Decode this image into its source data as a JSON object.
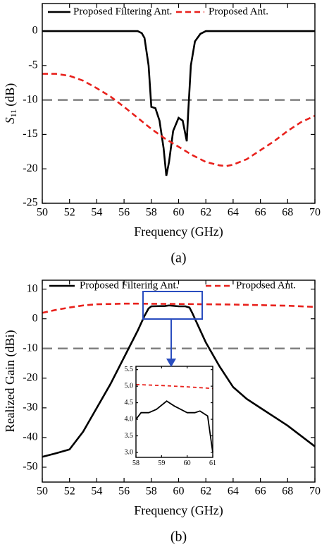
{
  "chart_data": [
    {
      "type": "line",
      "caption": "(a)",
      "xlabel": "Frequency (GHz)",
      "ylabel_symbol": "S",
      "ylabel_subscript": "11",
      "ylabel_unit": "(dB)",
      "xlim": [
        50,
        70
      ],
      "xticks": [
        50,
        52,
        54,
        56,
        58,
        60,
        62,
        64,
        66,
        68,
        70
      ],
      "ylim": [
        -25,
        4
      ],
      "yticks": [
        0,
        -5,
        -10,
        -15,
        -20,
        -25
      ],
      "reference_line": {
        "y": -10,
        "color": "#808080"
      },
      "legend": "upper center",
      "series": [
        {
          "name": "Proposed Filtering Ant.",
          "color": "#000000",
          "style": "solid",
          "x": [
            50,
            52,
            54,
            56,
            57,
            57.3,
            57.5,
            57.8,
            58,
            58.3,
            58.6,
            58.9,
            59.1,
            59.3,
            59.6,
            60,
            60.3,
            60.6,
            60.7,
            60.9,
            61.2,
            61.6,
            62,
            64,
            66,
            68,
            70
          ],
          "values": [
            0,
            0,
            0,
            0,
            0,
            -0.3,
            -1,
            -5,
            -11,
            -11.2,
            -13,
            -17,
            -21,
            -19,
            -14.5,
            -12.6,
            -13,
            -16,
            -12,
            -5,
            -1.5,
            -0.4,
            0,
            0,
            0,
            0,
            0
          ]
        },
        {
          "name": "Proposed Ant.",
          "color": "#e8211c",
          "style": "dashed",
          "x": [
            50,
            51,
            52,
            53,
            54,
            55,
            56,
            57,
            58,
            59,
            60,
            61,
            62,
            63,
            63.5,
            64,
            65,
            66,
            67,
            68,
            69,
            70
          ],
          "values": [
            -6.2,
            -6.2,
            -6.5,
            -7.2,
            -8.3,
            -9.5,
            -11,
            -12.6,
            -14.2,
            -15.6,
            -16.8,
            -18,
            -19,
            -19.5,
            -19.6,
            -19.4,
            -18.6,
            -17.3,
            -16,
            -14.5,
            -13.2,
            -12.3
          ]
        }
      ]
    },
    {
      "type": "line",
      "caption": "(b)",
      "xlabel": "Frequency (GHz)",
      "ylabel": "Realized Gain (dBi)",
      "xlim": [
        50,
        70
      ],
      "xticks": [
        50,
        52,
        54,
        56,
        58,
        60,
        62,
        64,
        66,
        68,
        70
      ],
      "ylim": [
        -55,
        13
      ],
      "yticks": [
        10,
        0,
        -10,
        -20,
        -30,
        -40,
        -50
      ],
      "reference_line": {
        "y": -10,
        "color": "#808080"
      },
      "legend": "upper center",
      "series": [
        {
          "name": "Proposed Filtering Ant.",
          "color": "#000000",
          "style": "solid",
          "x": [
            50,
            51,
            52,
            53,
            54,
            55,
            56,
            57,
            57.5,
            57.8,
            58,
            59,
            59.3,
            60,
            60.5,
            60.8,
            61,
            61.5,
            62,
            63,
            64,
            65,
            66,
            67,
            68,
            69,
            70
          ],
          "values": [
            -46.5,
            -45.3,
            -44,
            -38,
            -30,
            -22,
            -13,
            -4,
            1,
            3.5,
            4.2,
            4.3,
            4.5,
            4.2,
            4.2,
            3.8,
            2,
            -3,
            -8,
            -16,
            -23,
            -27,
            -30,
            -33,
            -36,
            -39.5,
            -43
          ]
        },
        {
          "name": "Proposed Ant.",
          "color": "#e8211c",
          "style": "dashed",
          "x": [
            50,
            51,
            52,
            53,
            54,
            55,
            56,
            57,
            58,
            60,
            62,
            64,
            66,
            68,
            70
          ],
          "values": [
            2,
            3,
            3.8,
            4.5,
            4.9,
            5,
            5.1,
            5.1,
            5.05,
            5,
            4.9,
            4.8,
            4.6,
            4.4,
            4
          ]
        }
      ]
    },
    {
      "type": "line",
      "xlim": [
        58,
        61
      ],
      "xticks": [
        58,
        59,
        60,
        61
      ],
      "ylim": [
        2.85,
        5.6
      ],
      "yticks": [
        {
          "value": 3,
          "label": "3.0"
        },
        {
          "value": 3.5,
          "label": "3.5"
        },
        {
          "value": 4,
          "label": "4.0"
        },
        {
          "value": 4.5,
          "label": "4.5"
        },
        {
          "value": 5,
          "label": "5.0"
        },
        {
          "value": 5.5,
          "label": "5.5"
        }
      ],
      "series": [
        {
          "color": "#000000",
          "style": "solid",
          "x": [
            58,
            58.2,
            58.5,
            58.8,
            59.2,
            59.5,
            60,
            60.3,
            60.5,
            60.8,
            61
          ],
          "values": [
            4,
            4.2,
            4.2,
            4.3,
            4.55,
            4.4,
            4.2,
            4.2,
            4.25,
            4.1,
            3
          ]
        },
        {
          "color": "#e8211c",
          "style": "dashed",
          "x": [
            58,
            59,
            60,
            61
          ],
          "values": [
            5.05,
            5.02,
            4.98,
            4.93
          ]
        }
      ]
    }
  ]
}
